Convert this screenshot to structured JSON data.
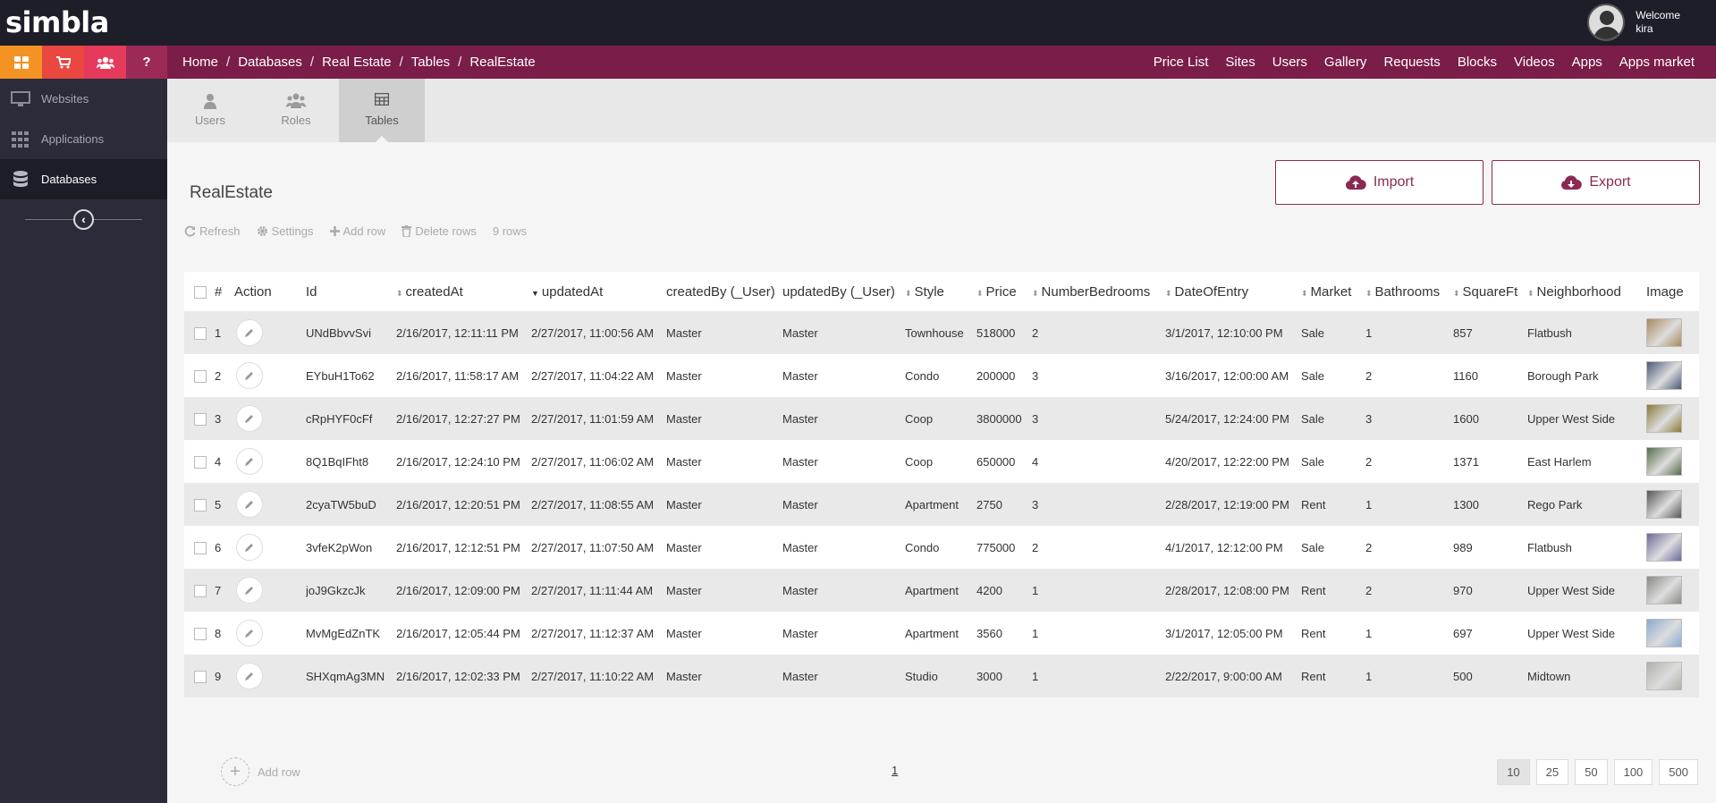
{
  "brand": {
    "logo_text": "simbla"
  },
  "user": {
    "welcome": "Welcome",
    "name": "kira"
  },
  "quick_actions": [
    {
      "icon": "grid-icon"
    },
    {
      "icon": "cart-icon"
    },
    {
      "icon": "users-group-icon"
    },
    {
      "icon": "help-icon",
      "label": "?"
    }
  ],
  "breadcrumb": [
    "Home",
    "Databases",
    "Real Estate",
    "Tables",
    "RealEstate"
  ],
  "top_nav": [
    "Price List",
    "Sites",
    "Users",
    "Gallery",
    "Requests",
    "Blocks",
    "Videos",
    "Apps",
    "Apps market"
  ],
  "sidebar": {
    "items": [
      {
        "label": "Websites",
        "icon": "monitor-icon"
      },
      {
        "label": "Applications",
        "icon": "apps-grid-icon"
      },
      {
        "label": "Databases",
        "icon": "database-icon",
        "active": true
      }
    ]
  },
  "tabs": [
    {
      "label": "Users",
      "icon": "user-icon"
    },
    {
      "label": "Roles",
      "icon": "roles-icon"
    },
    {
      "label": "Tables",
      "icon": "table-icon",
      "active": true
    }
  ],
  "page": {
    "title": "RealEstate",
    "import_label": "Import",
    "export_label": "Export"
  },
  "toolbar": {
    "refresh": "Refresh",
    "settings": "Settings",
    "add_row": "Add row",
    "delete_rows": "Delete rows",
    "row_count": "9 rows"
  },
  "table": {
    "columns": [
      "#",
      "Action",
      "Id",
      "createdAt",
      "updatedAt",
      "createdBy (_User)",
      "updatedBy (_User)",
      "Style",
      "Price",
      "NumberBedrooms",
      "DateOfEntry",
      "Market",
      "Bathrooms",
      "SquareFt",
      "Neighborhood",
      "Image"
    ],
    "rows": [
      [
        "1",
        "UNdBbvvSvi",
        "2/16/2017, 12:11:11 PM",
        "2/27/2017, 11:00:56 AM",
        "Master",
        "Master",
        "Townhouse",
        "518000",
        "2",
        "3/1/2017, 12:10:00 PM",
        "Sale",
        "1",
        "857",
        "Flatbush"
      ],
      [
        "2",
        "EYbuH1To62",
        "2/16/2017, 11:58:17 AM",
        "2/27/2017, 11:04:22 AM",
        "Master",
        "Master",
        "Condo",
        "200000",
        "3",
        "3/16/2017, 12:00:00 AM",
        "Sale",
        "2",
        "1160",
        "Borough Park"
      ],
      [
        "3",
        "cRpHYF0cFf",
        "2/16/2017, 12:27:27 PM",
        "2/27/2017, 11:01:59 AM",
        "Master",
        "Master",
        "Coop",
        "3800000",
        "3",
        "5/24/2017, 12:24:00 PM",
        "Sale",
        "3",
        "1600",
        "Upper West Side"
      ],
      [
        "4",
        "8Q1BqIFht8",
        "2/16/2017, 12:24:10 PM",
        "2/27/2017, 11:06:02 AM",
        "Master",
        "Master",
        "Coop",
        "650000",
        "4",
        "4/20/2017, 12:22:00 PM",
        "Sale",
        "2",
        "1371",
        "East Harlem"
      ],
      [
        "5",
        "2cyaTW5buD",
        "2/16/2017, 12:20:51 PM",
        "2/27/2017, 11:08:55 AM",
        "Master",
        "Master",
        "Apartment",
        "2750",
        "3",
        "2/28/2017, 12:19:00 PM",
        "Rent",
        "1",
        "1300",
        "Rego Park"
      ],
      [
        "6",
        "3vfeK2pWon",
        "2/16/2017, 12:12:51 PM",
        "2/27/2017, 11:07:50 AM",
        "Master",
        "Master",
        "Condo",
        "775000",
        "2",
        "4/1/2017, 12:12:00 PM",
        "Sale",
        "2",
        "989",
        "Flatbush"
      ],
      [
        "7",
        "joJ9GkzcJk",
        "2/16/2017, 12:09:00 PM",
        "2/27/2017, 11:11:44 AM",
        "Master",
        "Master",
        "Apartment",
        "4200",
        "1",
        "2/28/2017, 12:08:00 PM",
        "Rent",
        "2",
        "970",
        "Upper West Side"
      ],
      [
        "8",
        "MvMgEdZnTK",
        "2/16/2017, 12:05:44 PM",
        "2/27/2017, 11:12:37 AM",
        "Master",
        "Master",
        "Apartment",
        "3560",
        "1",
        "3/1/2017, 12:05:00 PM",
        "Rent",
        "1",
        "697",
        "Upper West Side"
      ],
      [
        "9",
        "SHXqmAg3MN",
        "2/16/2017, 12:02:33 PM",
        "2/27/2017, 11:10:22 AM",
        "Master",
        "Master",
        "Studio",
        "3000",
        "1",
        "2/22/2017, 9:00:00 AM",
        "Rent",
        "1",
        "500",
        "Midtown"
      ]
    ],
    "thumb_colors": [
      "#a8895c",
      "#4a5a78",
      "#8a7a3a",
      "#556b4a",
      "#555555",
      "#6a6a9a",
      "#8a8a88",
      "#8aaad0",
      "#b0b0a8"
    ]
  },
  "footer": {
    "add_row": "Add row",
    "page": "1",
    "page_sizes": [
      "10",
      "25",
      "50",
      "100",
      "500"
    ],
    "selected_size": "10"
  },
  "colors": {
    "topbar": "#1e1e28",
    "navbar": "#7a1d48",
    "accent": "#8a2a52",
    "sidebar": "#2b2b3a"
  }
}
